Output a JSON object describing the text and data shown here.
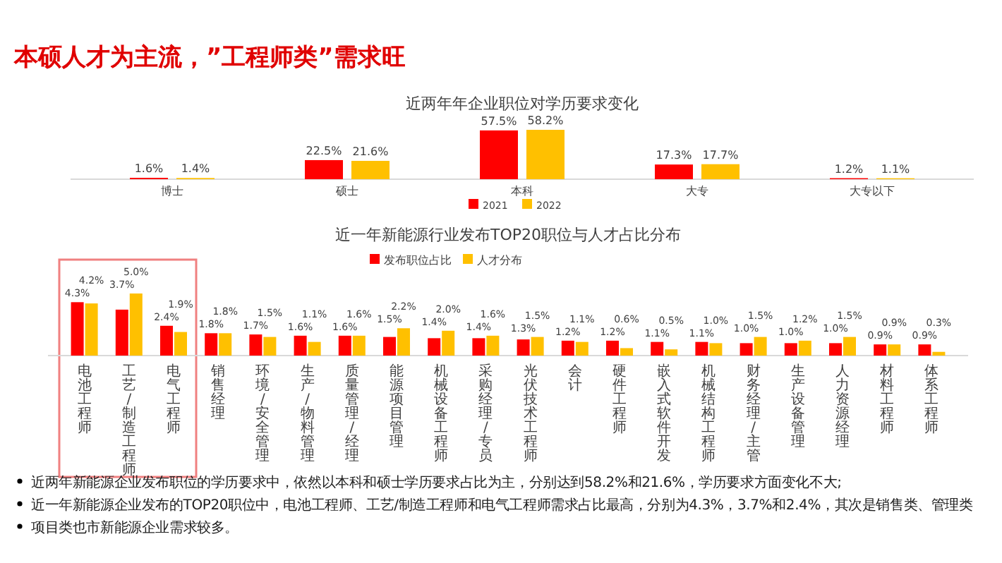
{
  "chart_data": [
    {
      "type": "bar",
      "title": "近两年年企业职位对学历要求变化",
      "annotations": [
        "本硕人才为主流，”工程师类”需求旺"
      ],
      "categories": [
        "博士",
        "硕士",
        "本科",
        "大专",
        "大专以下"
      ],
      "legend": "bottom",
      "series": [
        {
          "name": "2021",
          "color": "#ff0000",
          "values": [
            1.6,
            22.5,
            57.5,
            17.3,
            1.2
          ],
          "value_labels": [
            "1.6%",
            "22.5%",
            "57.5%",
            "17.3%",
            "1.2%"
          ]
        },
        {
          "name": "2022",
          "color": "#ffc000",
          "values": [
            1.4,
            21.6,
            58.2,
            17.7,
            1.1
          ],
          "value_labels": [
            "1.4%",
            "21.6%",
            "58.2%",
            "17.7%",
            "1.1%"
          ]
        }
      ]
    },
    {
      "type": "bar",
      "title": "近一年新能源行业发布TOP20职位与人才占比分布",
      "legend": "top",
      "categories": [
        "电池工程师",
        "工艺/制造工程师",
        "电气工程师",
        "销售经理",
        "环境/安全管理",
        "生产/物料管理",
        "质量管理/经理",
        "能源项目管理",
        "机械设备工程师",
        "采购经理/专员",
        "光伏技术工程师",
        "会计",
        "硬件工程师",
        "嵌入式软件开发",
        "机械结构工程师",
        "财务经理/主管",
        "生产设备管理",
        "人力资源经理",
        "材料工程师",
        "体系工程师"
      ],
      "series": [
        {
          "name": "发布职位占比",
          "color": "#ff0000",
          "values": [
            4.3,
            3.7,
            2.4,
            1.8,
            1.7,
            1.6,
            1.6,
            1.5,
            1.4,
            1.4,
            1.3,
            1.2,
            1.2,
            1.1,
            1.1,
            1.0,
            1.0,
            1.0,
            0.9,
            0.9
          ],
          "value_labels": [
            "4.3%",
            "3.7%",
            "2.4%",
            "1.8%",
            "1.7%",
            "1.6%",
            "1.6%",
            "1.5%",
            "1.4%",
            "1.4%",
            "1.3%",
            "1.2%",
            "1.2%",
            "1.1%",
            "1.1%",
            "1.0%",
            "1.0%",
            "1.0%",
            "0.9%",
            "0.9%"
          ]
        },
        {
          "name": "人才分布",
          "color": "#ffc000",
          "values": [
            4.2,
            5.0,
            1.9,
            1.8,
            1.5,
            1.1,
            1.6,
            2.2,
            2.0,
            1.6,
            1.5,
            1.1,
            0.6,
            0.5,
            1.0,
            1.5,
            1.2,
            1.5,
            0.9,
            0.3
          ],
          "value_labels": [
            "4.2%",
            "5.0%",
            "1.9%",
            "1.8%",
            "1.5%",
            "1.1%",
            "1.6%",
            "2.2%",
            "2.0%",
            "1.6%",
            "1.5%",
            "1.1%",
            "0.6%",
            "0.5%",
            "1.0%",
            "1.5%",
            "1.2%",
            "1.5%",
            "0.9%",
            "0.3%"
          ]
        }
      ],
      "annotations": [
        "近两年新能源企业发布职位的学历要求中，依然以本科和硕士学历要求占比为主，分别达到58.2%和21.6%，学历要求方面变化不大;",
        "近一年新能源企业发布的TOP20职位中，电池工程师、工艺/制造工程师和电气工程师需求占比最高，分别为4.3%，3.7%和2.4%，其次是销售类、管理类",
        "项目类也市新能源企业需求较多。"
      ]
    }
  ]
}
